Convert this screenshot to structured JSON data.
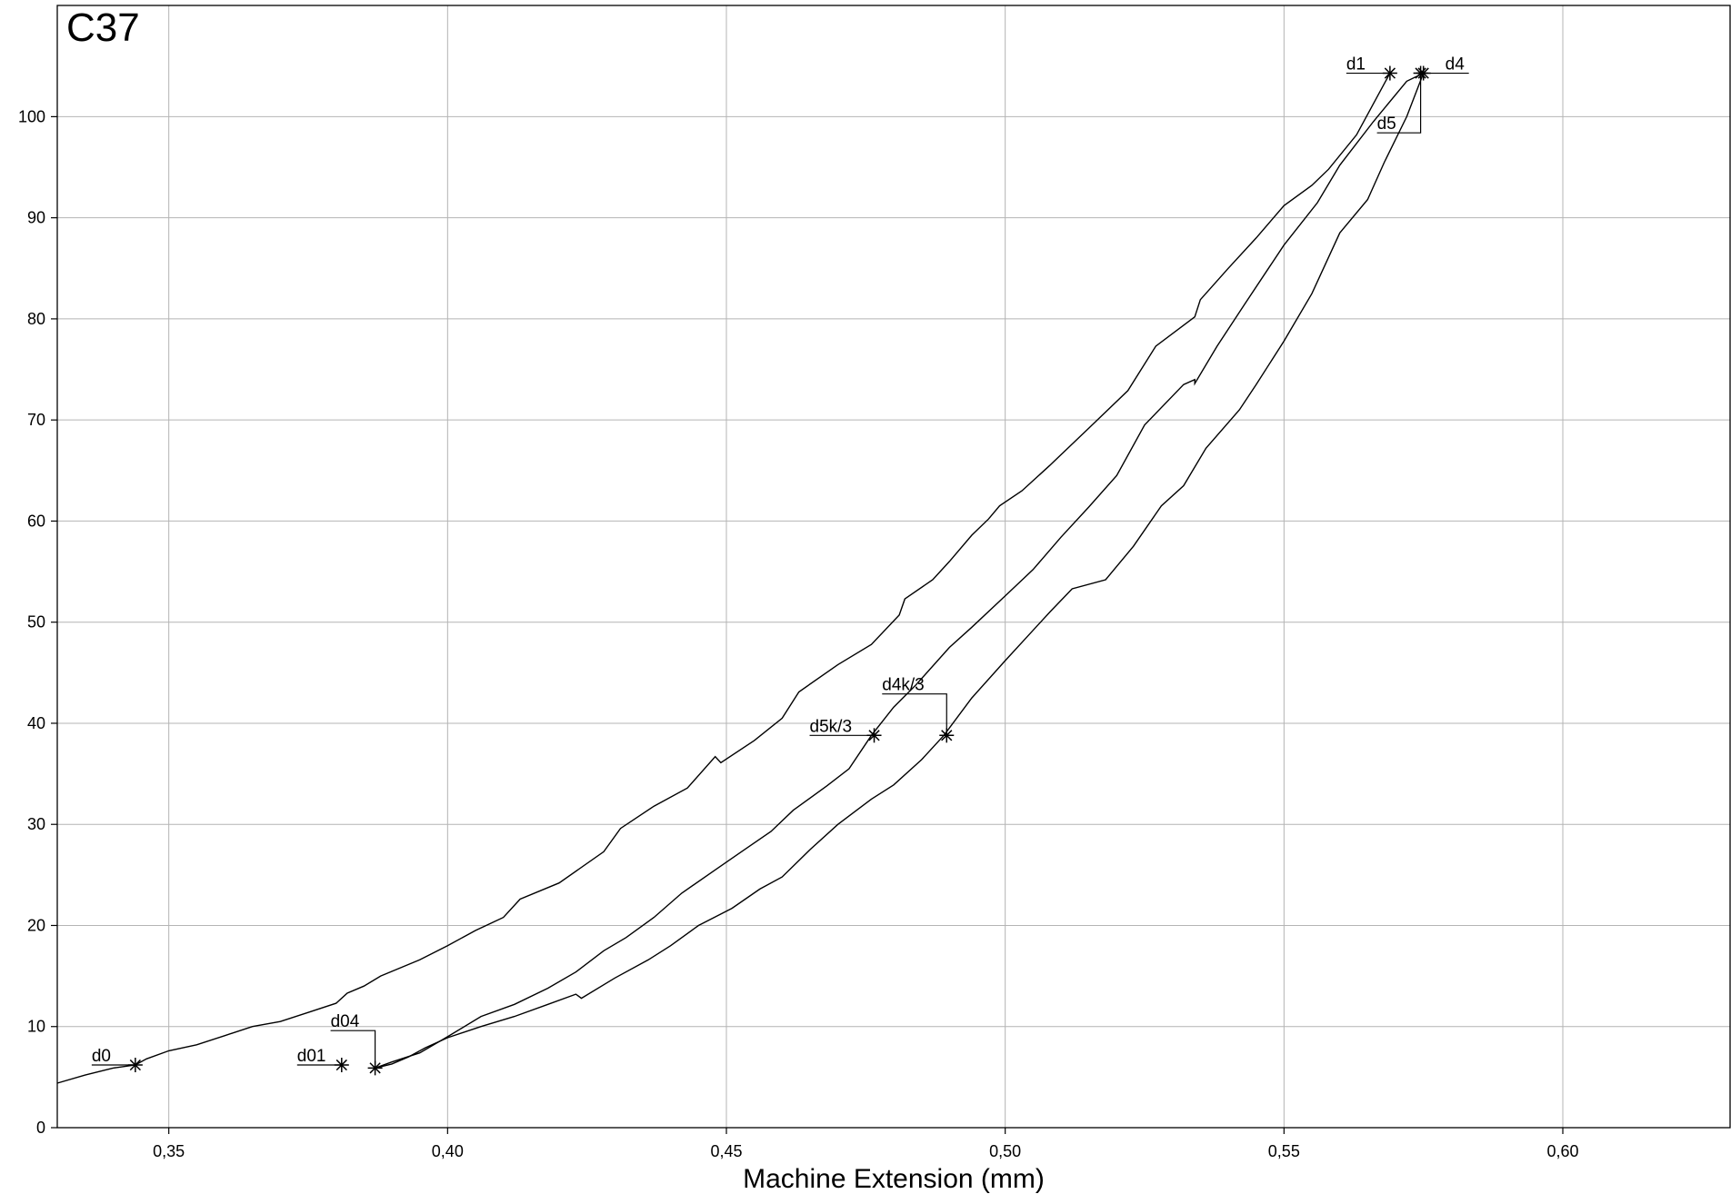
{
  "chart_data": {
    "type": "line",
    "title": "C37",
    "xlabel": "Machine Extension (mm)",
    "ylabel": "",
    "xlim": [
      0.33,
      0.63
    ],
    "ylim": [
      0,
      111
    ],
    "grid": true,
    "x_ticks": [
      {
        "value": 0.35,
        "label": "0,35"
      },
      {
        "value": 0.4,
        "label": "0,40"
      },
      {
        "value": 0.45,
        "label": "0,45"
      },
      {
        "value": 0.5,
        "label": "0,50"
      },
      {
        "value": 0.55,
        "label": "0,55"
      },
      {
        "value": 0.6,
        "label": "0,60"
      }
    ],
    "y_ticks": [
      {
        "value": 0,
        "label": "0"
      },
      {
        "value": 10,
        "label": "10"
      },
      {
        "value": 20,
        "label": "20"
      },
      {
        "value": 30,
        "label": "30"
      },
      {
        "value": 40,
        "label": "40"
      },
      {
        "value": 50,
        "label": "50"
      },
      {
        "value": 60,
        "label": "60"
      },
      {
        "value": 70,
        "label": "70"
      },
      {
        "value": 80,
        "label": "80"
      },
      {
        "value": 90,
        "label": "90"
      },
      {
        "value": 100,
        "label": "100"
      }
    ],
    "series": [
      {
        "points": [
          [
            0.33,
            4.4
          ],
          [
            0.335,
            5.2
          ],
          [
            0.34,
            5.9
          ],
          [
            0.344,
            6.2
          ],
          [
            0.346,
            6.8
          ],
          [
            0.35,
            7.6
          ],
          [
            0.355,
            8.2
          ],
          [
            0.36,
            9.1
          ],
          [
            0.365,
            10.0
          ],
          [
            0.37,
            10.5
          ],
          [
            0.375,
            11.4
          ],
          [
            0.38,
            12.3
          ],
          [
            0.382,
            13.3
          ],
          [
            0.385,
            14.0
          ],
          [
            0.388,
            15.0
          ],
          [
            0.395,
            16.6
          ],
          [
            0.4,
            18.0
          ],
          [
            0.405,
            19.5
          ],
          [
            0.41,
            20.8
          ],
          [
            0.413,
            22.6
          ],
          [
            0.42,
            24.2
          ],
          [
            0.428,
            27.3
          ],
          [
            0.431,
            29.6
          ],
          [
            0.437,
            31.8
          ],
          [
            0.443,
            33.6
          ],
          [
            0.448,
            36.7
          ],
          [
            0.449,
            36.1
          ],
          [
            0.455,
            38.3
          ],
          [
            0.46,
            40.5
          ],
          [
            0.463,
            43.1
          ],
          [
            0.47,
            45.8
          ],
          [
            0.476,
            47.8
          ],
          [
            0.481,
            50.7
          ],
          [
            0.482,
            52.3
          ],
          [
            0.487,
            54.2
          ],
          [
            0.49,
            56.0
          ],
          [
            0.494,
            58.6
          ],
          [
            0.497,
            60.2
          ],
          [
            0.499,
            61.5
          ],
          [
            0.503,
            63.0
          ],
          [
            0.508,
            65.5
          ],
          [
            0.515,
            69.2
          ],
          [
            0.522,
            72.9
          ],
          [
            0.527,
            77.3
          ],
          [
            0.534,
            80.2
          ],
          [
            0.535,
            81.9
          ],
          [
            0.54,
            85.0
          ],
          [
            0.545,
            88.0
          ],
          [
            0.55,
            91.2
          ],
          [
            0.555,
            93.2
          ],
          [
            0.558,
            94.8
          ],
          [
            0.563,
            98.2
          ],
          [
            0.569,
            104.3
          ]
        ]
      },
      {
        "points": [
          [
            0.387,
            5.9
          ],
          [
            0.39,
            6.5
          ],
          [
            0.395,
            7.4
          ],
          [
            0.4,
            9.0
          ],
          [
            0.406,
            11.0
          ],
          [
            0.412,
            12.2
          ],
          [
            0.418,
            13.8
          ],
          [
            0.423,
            15.4
          ],
          [
            0.428,
            17.5
          ],
          [
            0.432,
            18.8
          ],
          [
            0.437,
            20.8
          ],
          [
            0.442,
            23.2
          ],
          [
            0.448,
            25.5
          ],
          [
            0.453,
            27.4
          ],
          [
            0.458,
            29.3
          ],
          [
            0.462,
            31.4
          ],
          [
            0.468,
            33.8
          ],
          [
            0.472,
            35.5
          ],
          [
            0.476,
            38.8
          ],
          [
            0.48,
            41.6
          ],
          [
            0.484,
            43.8
          ],
          [
            0.49,
            47.5
          ],
          [
            0.494,
            49.5
          ],
          [
            0.5,
            52.6
          ],
          [
            0.505,
            55.2
          ],
          [
            0.51,
            58.4
          ],
          [
            0.515,
            61.4
          ],
          [
            0.52,
            64.5
          ],
          [
            0.525,
            69.5
          ],
          [
            0.532,
            73.5
          ],
          [
            0.534,
            74.0
          ],
          [
            0.534,
            73.6
          ],
          [
            0.538,
            77.3
          ],
          [
            0.543,
            81.5
          ],
          [
            0.55,
            87.3
          ],
          [
            0.556,
            91.5
          ],
          [
            0.56,
            95.2
          ],
          [
            0.566,
            99.5
          ],
          [
            0.572,
            103.5
          ],
          [
            0.575,
            104.3
          ]
        ]
      },
      {
        "points": [
          [
            0.387,
            5.9
          ],
          [
            0.39,
            6.3
          ],
          [
            0.393,
            7.0
          ],
          [
            0.396,
            7.9
          ],
          [
            0.4,
            8.9
          ],
          [
            0.406,
            10.0
          ],
          [
            0.412,
            11.0
          ],
          [
            0.418,
            12.2
          ],
          [
            0.423,
            13.2
          ],
          [
            0.424,
            12.8
          ],
          [
            0.43,
            14.8
          ],
          [
            0.436,
            16.6
          ],
          [
            0.44,
            18.0
          ],
          [
            0.445,
            20.0
          ],
          [
            0.451,
            21.7
          ],
          [
            0.456,
            23.6
          ],
          [
            0.46,
            24.8
          ],
          [
            0.465,
            27.5
          ],
          [
            0.47,
            30.0
          ],
          [
            0.476,
            32.5
          ],
          [
            0.48,
            33.9
          ],
          [
            0.485,
            36.4
          ],
          [
            0.489,
            38.8
          ],
          [
            0.494,
            42.5
          ],
          [
            0.5,
            46.2
          ],
          [
            0.504,
            48.6
          ],
          [
            0.508,
            51.0
          ],
          [
            0.512,
            53.3
          ],
          [
            0.518,
            54.2
          ],
          [
            0.523,
            57.5
          ],
          [
            0.528,
            61.5
          ],
          [
            0.532,
            63.5
          ],
          [
            0.536,
            67.2
          ],
          [
            0.542,
            71.0
          ],
          [
            0.545,
            73.5
          ],
          [
            0.55,
            77.8
          ],
          [
            0.555,
            82.5
          ],
          [
            0.56,
            88.5
          ],
          [
            0.565,
            91.8
          ],
          [
            0.568,
            95.5
          ],
          [
            0.572,
            100.0
          ],
          [
            0.575,
            104.3
          ]
        ]
      }
    ],
    "markers": [
      {
        "label": "d0",
        "x": 0.344,
        "y": 6.2,
        "label_side": "left",
        "leader": "horizontal"
      },
      {
        "label": "d01",
        "x": 0.381,
        "y": 6.2,
        "label_side": "left",
        "leader": "horizontal"
      },
      {
        "label": "d04",
        "x": 0.387,
        "y": 5.9,
        "label_side": "left",
        "leader": "elbow",
        "label_y": 9.6
      },
      {
        "label": "d5k/3",
        "x": 0.4765,
        "y": 38.8,
        "label_side": "left",
        "leader": "horizontal"
      },
      {
        "label": "d4k/3",
        "x": 0.4895,
        "y": 38.8,
        "label_side": "left",
        "leader": "elbow",
        "label_y": 42.9
      },
      {
        "label": "d1",
        "x": 0.569,
        "y": 104.3,
        "label_side": "left",
        "leader": "horizontal"
      },
      {
        "label": "d4",
        "x": 0.575,
        "y": 104.3,
        "label_side": "right",
        "leader": "horizontal"
      },
      {
        "label": "d5",
        "x": 0.5745,
        "y": 104.3,
        "label_side": "left",
        "leader": "elbow",
        "label_y": 98.4
      }
    ]
  }
}
